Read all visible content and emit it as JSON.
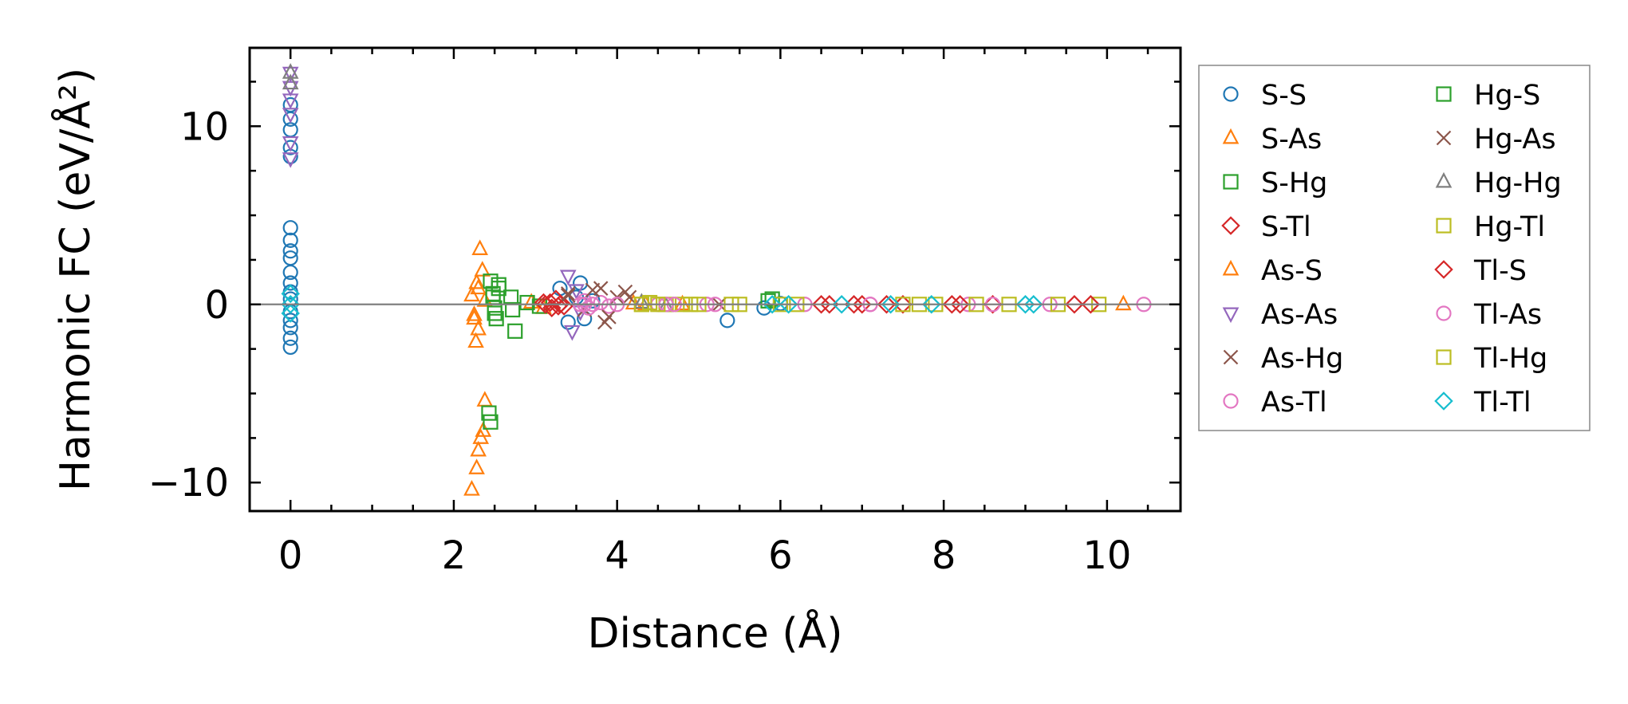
{
  "chart_data": {
    "type": "scatter",
    "xlabel": "Distance (Å)",
    "ylabel": "Harmonic FC (eV/Å²)",
    "xlim": [
      -0.5,
      10.9
    ],
    "ylim": [
      -11.6,
      14.4
    ],
    "x_ticks": [
      0,
      2,
      4,
      6,
      8,
      10
    ],
    "x_tick_labels": [
      "0",
      "2",
      "4",
      "6",
      "8",
      "10"
    ],
    "y_ticks": [
      -10,
      0,
      10
    ],
    "y_tick_labels": [
      "−10",
      "0",
      "10"
    ],
    "zero_line": true,
    "grid": false,
    "legend_position": "outside-right",
    "series": [
      {
        "name": "S-S",
        "marker": "circle",
        "color": "#1f77b4",
        "points": [
          [
            0,
            4.3
          ],
          [
            0,
            3.6
          ],
          [
            0,
            3.0
          ],
          [
            0,
            2.6
          ],
          [
            0,
            1.8
          ],
          [
            0,
            1.2
          ],
          [
            0,
            0.7
          ],
          [
            0,
            0.3
          ],
          [
            0,
            -0.4
          ],
          [
            0,
            -0.9
          ],
          [
            0,
            -1.3
          ],
          [
            0,
            -1.9
          ],
          [
            0,
            -2.4
          ],
          [
            0,
            8.3
          ],
          [
            0,
            8.8
          ],
          [
            0,
            9.8
          ],
          [
            0,
            10.4
          ],
          [
            0,
            11.2
          ],
          [
            3.3,
            0.9
          ],
          [
            3.4,
            -1.0
          ],
          [
            3.5,
            0.4
          ],
          [
            3.55,
            1.2
          ],
          [
            3.6,
            -0.8
          ],
          [
            3.7,
            0.2
          ],
          [
            5.35,
            -0.9
          ],
          [
            5.8,
            -0.2
          ],
          [
            6.0,
            0.05
          ]
        ]
      },
      {
        "name": "S-As",
        "marker": "triangle-up",
        "color": "#ff7f0e",
        "points": [
          [
            2.22,
            0.5
          ],
          [
            2.25,
            -0.6
          ],
          [
            2.28,
            1.2
          ],
          [
            2.32,
            3.1
          ],
          [
            2.35,
            1.9
          ],
          [
            2.38,
            0.2
          ],
          [
            2.3,
            -1.4
          ],
          [
            2.27,
            -2.1
          ],
          [
            2.95,
            0.1
          ],
          [
            3.1,
            -0.2
          ],
          [
            4.2,
            0.05
          ],
          [
            10.2,
            0.0
          ]
        ]
      },
      {
        "name": "S-Hg",
        "marker": "square",
        "color": "#2ca02c",
        "points": [
          [
            2.45,
            1.3
          ],
          [
            2.48,
            0.6
          ],
          [
            2.5,
            -0.2
          ],
          [
            2.52,
            -0.8
          ],
          [
            2.55,
            0.9
          ],
          [
            2.7,
            0.4
          ],
          [
            2.72,
            -0.3
          ],
          [
            2.75,
            -1.5
          ],
          [
            2.9,
            0.1
          ],
          [
            3.05,
            -0.1
          ],
          [
            5.85,
            0.2
          ]
        ]
      },
      {
        "name": "S-Tl",
        "marker": "diamond",
        "color": "#d62728",
        "points": [
          [
            3.1,
            0.1
          ],
          [
            3.2,
            -0.2
          ],
          [
            3.25,
            0.3
          ],
          [
            3.3,
            0.0
          ],
          [
            3.35,
            -0.1
          ],
          [
            6.6,
            0.0
          ],
          [
            7.0,
            0.0
          ],
          [
            7.5,
            0.0
          ],
          [
            8.1,
            0.0
          ],
          [
            8.6,
            0.0
          ]
        ]
      },
      {
        "name": "As-S",
        "marker": "triangle-up",
        "color": "#ff7f0e",
        "points": [
          [
            2.22,
            -10.4
          ],
          [
            2.28,
            -9.2
          ],
          [
            2.3,
            -8.2
          ],
          [
            2.33,
            -7.5
          ],
          [
            2.36,
            -7.1
          ],
          [
            2.38,
            -5.4
          ],
          [
            2.25,
            -0.8
          ],
          [
            2.3,
            0.9
          ],
          [
            4.35,
            0.0
          ],
          [
            4.8,
            0.0
          ]
        ]
      },
      {
        "name": "As-As",
        "marker": "triangle-down",
        "color": "#9467bd",
        "points": [
          [
            0,
            13.0
          ],
          [
            0,
            12.2
          ],
          [
            0,
            11.5
          ],
          [
            0,
            10.7
          ],
          [
            0,
            9.1
          ],
          [
            0,
            8.2
          ],
          [
            3.4,
            1.6
          ],
          [
            3.45,
            -1.5
          ],
          [
            3.5,
            0.8
          ],
          [
            3.55,
            -0.4
          ]
        ]
      },
      {
        "name": "As-Hg",
        "marker": "x",
        "color": "#8c564b",
        "points": [
          [
            3.4,
            0.6
          ],
          [
            3.6,
            -0.3
          ],
          [
            3.8,
            0.9
          ],
          [
            3.85,
            -1.0
          ],
          [
            4.0,
            0.4
          ],
          [
            4.1,
            0.7
          ]
        ]
      },
      {
        "name": "As-Tl",
        "marker": "circle",
        "color": "#e377c2",
        "points": [
          [
            3.55,
            0.0
          ],
          [
            3.6,
            0.2
          ],
          [
            3.65,
            -0.2
          ],
          [
            3.8,
            0.1
          ],
          [
            3.9,
            -0.1
          ],
          [
            4.5,
            0.0
          ],
          [
            5.1,
            0.0
          ],
          [
            6.3,
            0.0
          ],
          [
            7.1,
            0.0
          ],
          [
            8.3,
            0.0
          ]
        ]
      },
      {
        "name": "Hg-S",
        "marker": "square",
        "color": "#2ca02c",
        "points": [
          [
            2.43,
            -6.1
          ],
          [
            2.45,
            -6.6
          ],
          [
            2.48,
            0.4
          ],
          [
            2.5,
            -0.5
          ],
          [
            2.55,
            1.1
          ],
          [
            5.9,
            0.3
          ]
        ]
      },
      {
        "name": "Hg-As",
        "marker": "x",
        "color": "#8c564b",
        "points": [
          [
            3.4,
            0.5
          ],
          [
            3.7,
            0.8
          ],
          [
            3.9,
            -0.7
          ],
          [
            4.15,
            0.4
          ],
          [
            5.25,
            0.0
          ]
        ]
      },
      {
        "name": "Hg-Hg",
        "marker": "triangle-up",
        "color": "#7f7f7f",
        "points": [
          [
            0,
            13.0
          ],
          [
            0,
            12.4
          ],
          [
            4.3,
            0.1
          ],
          [
            4.6,
            -0.1
          ]
        ]
      },
      {
        "name": "Hg-Tl",
        "marker": "square",
        "color": "#bcbd22",
        "points": [
          [
            4.3,
            0.0
          ],
          [
            4.4,
            0.1
          ],
          [
            4.6,
            0.0
          ],
          [
            4.8,
            0.0
          ],
          [
            5.0,
            0.0
          ],
          [
            5.5,
            0.0
          ],
          [
            6.0,
            0.0
          ],
          [
            7.5,
            0.0
          ],
          [
            7.9,
            0.0
          ],
          [
            8.8,
            0.0
          ],
          [
            9.9,
            0.0
          ]
        ]
      },
      {
        "name": "Tl-S",
        "marker": "diamond",
        "color": "#d62728",
        "points": [
          [
            3.12,
            0.0
          ],
          [
            3.18,
            0.1
          ],
          [
            3.28,
            -0.1
          ],
          [
            6.5,
            0.0
          ],
          [
            6.9,
            0.0
          ],
          [
            7.3,
            0.0
          ],
          [
            8.2,
            0.0
          ],
          [
            9.6,
            0.0
          ],
          [
            9.8,
            0.0
          ]
        ]
      },
      {
        "name": "Tl-As",
        "marker": "circle",
        "color": "#e377c2",
        "points": [
          [
            3.6,
            0.0
          ],
          [
            3.7,
            0.0
          ],
          [
            4.0,
            0.0
          ],
          [
            4.6,
            0.0
          ],
          [
            4.7,
            0.0
          ],
          [
            5.2,
            0.0
          ],
          [
            7.1,
            0.0
          ],
          [
            8.6,
            0.0
          ],
          [
            9.3,
            0.0
          ],
          [
            10.45,
            0.0
          ]
        ]
      },
      {
        "name": "Tl-Hg",
        "marker": "square",
        "color": "#bcbd22",
        "points": [
          [
            4.3,
            0.0
          ],
          [
            4.5,
            0.0
          ],
          [
            4.9,
            0.0
          ],
          [
            5.4,
            0.0
          ],
          [
            6.2,
            0.0
          ],
          [
            7.7,
            0.0
          ],
          [
            8.4,
            0.0
          ],
          [
            9.4,
            0.0
          ]
        ]
      },
      {
        "name": "Tl-Tl",
        "marker": "diamond",
        "color": "#17becf",
        "points": [
          [
            0,
            0.0
          ],
          [
            0,
            0.6
          ],
          [
            0,
            -0.5
          ],
          [
            5.9,
            0.0
          ],
          [
            6.1,
            0.0
          ],
          [
            6.75,
            0.0
          ],
          [
            7.35,
            0.0
          ],
          [
            7.85,
            0.0
          ],
          [
            9.0,
            0.0
          ],
          [
            9.1,
            0.0
          ]
        ]
      }
    ]
  }
}
